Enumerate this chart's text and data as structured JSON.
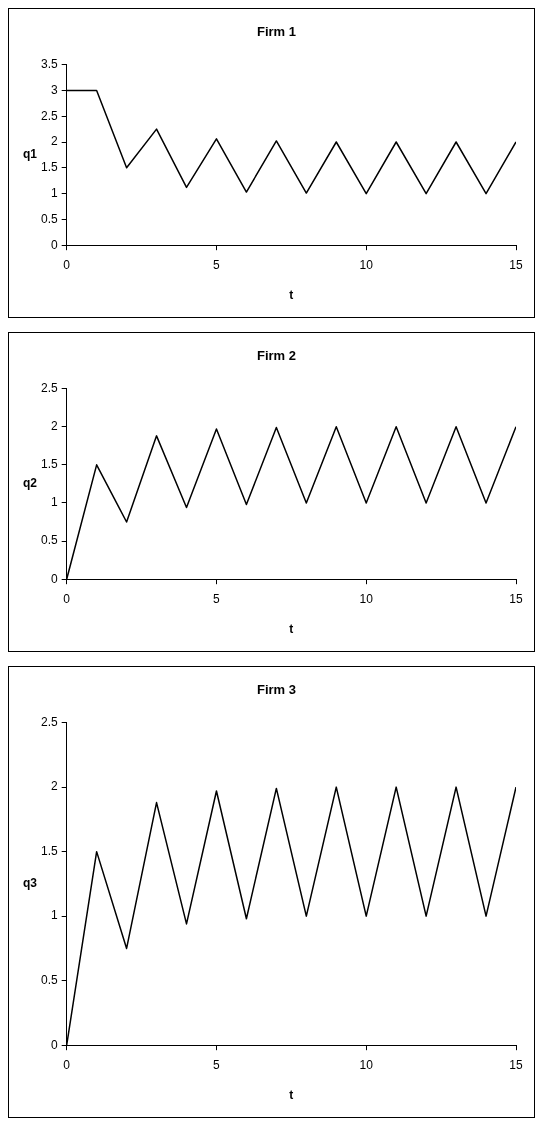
{
  "chart_data": [
    {
      "type": "line",
      "title": "Firm 1",
      "xlabel": "t",
      "ylabel": "q1",
      "x": [
        0,
        1,
        2,
        3,
        4,
        5,
        6,
        7,
        8,
        9,
        10,
        11,
        12,
        13,
        14,
        15
      ],
      "series": [
        {
          "color": "#000000",
          "values": [
            3,
            3,
            1.5,
            2.25,
            1.12,
            2.06,
            1.03,
            2.02,
            1.01,
            2,
            1,
            2,
            1,
            2,
            1,
            2
          ]
        }
      ],
      "xlim": [
        0,
        15
      ],
      "xticks": [
        0,
        5,
        10,
        15
      ],
      "ylim": [
        0,
        3.5
      ],
      "yticks": [
        0,
        0.5,
        1,
        1.5,
        2,
        2.5,
        3,
        3.5
      ],
      "legend": false,
      "marker": "none",
      "line_style": "solid"
    },
    {
      "type": "line",
      "title": "Firm 2",
      "xlabel": "t",
      "ylabel": "q2",
      "x": [
        0,
        1,
        2,
        3,
        4,
        5,
        6,
        7,
        8,
        9,
        10,
        11,
        12,
        13,
        14,
        15
      ],
      "series": [
        {
          "color": "#000000",
          "values": [
            0,
            1.5,
            0.75,
            1.88,
            0.94,
            1.97,
            0.98,
            1.99,
            1,
            2,
            1,
            2,
            1,
            2,
            1,
            2
          ]
        }
      ],
      "xlim": [
        0,
        15
      ],
      "xticks": [
        0,
        5,
        10,
        15
      ],
      "ylim": [
        0,
        2.5
      ],
      "yticks": [
        0,
        0.5,
        1,
        1.5,
        2,
        2.5
      ],
      "legend": false,
      "marker": "none",
      "line_style": "solid"
    },
    {
      "type": "line",
      "title": "Firm 3",
      "xlabel": "t",
      "ylabel": "q3",
      "x": [
        0,
        1,
        2,
        3,
        4,
        5,
        6,
        7,
        8,
        9,
        10,
        11,
        12,
        13,
        14,
        15
      ],
      "series": [
        {
          "color": "#000000",
          "values": [
            0,
            1.5,
            0.75,
            1.88,
            0.94,
            1.97,
            0.98,
            1.99,
            1,
            2,
            1,
            2,
            1,
            2,
            1,
            2
          ]
        }
      ],
      "xlim": [
        0,
        15
      ],
      "xticks": [
        0,
        5,
        10,
        15
      ],
      "ylim": [
        0,
        2.5
      ],
      "yticks": [
        0,
        0.5,
        1,
        1.5,
        2,
        2.5
      ],
      "legend": false,
      "marker": "none",
      "line_style": "solid"
    }
  ]
}
